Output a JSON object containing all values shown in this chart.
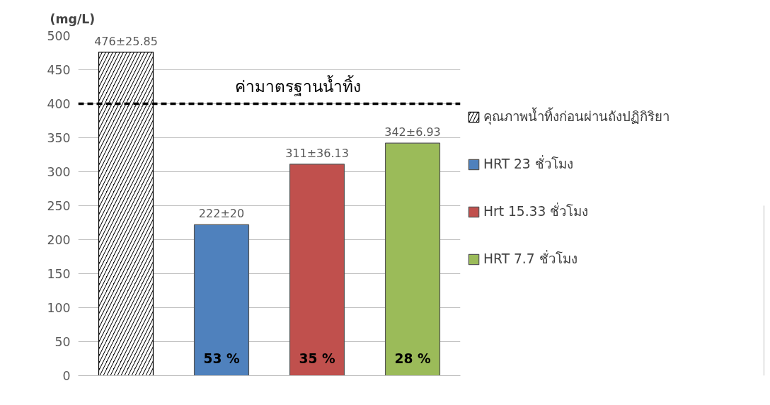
{
  "chart_data": {
    "type": "bar",
    "ylabel": "(mg/L)",
    "categories": [
      null,
      null,
      null,
      null
    ],
    "series": [
      {
        "name": "คุณภาพน้ำทิ้งก่อนผ่านถังปฏิกิริยา",
        "color": "#000000",
        "values": [
          476,
          null,
          null,
          null
        ],
        "value_labels": [
          "476±25.85",
          null,
          null,
          null
        ]
      },
      {
        "name": "HRT 23 ชั่วโมง",
        "color": "#4f81bd",
        "values": [
          null,
          222,
          null,
          null
        ],
        "value_labels": [
          null,
          "222±20",
          null,
          null
        ]
      },
      {
        "name": "Hrt 15.33 ชั่วโมง",
        "color": "#c0504d",
        "values": [
          null,
          null,
          311,
          null
        ],
        "value_labels": [
          null,
          null,
          "311±36.13",
          null
        ]
      },
      {
        "name": "HRT 7.7 ชั่วโมง",
        "color": "#9bbb59",
        "values": [
          null,
          null,
          null,
          342
        ],
        "value_labels": [
          null,
          null,
          null,
          "342±6.93"
        ]
      }
    ],
    "ylim": [
      0,
      500
    ],
    "yticks": [
      0,
      50,
      100,
      150,
      200,
      250,
      300,
      350,
      400,
      450,
      500
    ],
    "ref_lines": [
      {
        "axis": "y",
        "value": 400,
        "label": "ค่ามาตรฐานน้ำทิ้ง",
        "color": "#000000",
        "line_style": "dashed"
      }
    ],
    "annotations": [
      "53 %",
      "35 %",
      "28 %"
    ],
    "grid": "y",
    "legend": "right"
  }
}
